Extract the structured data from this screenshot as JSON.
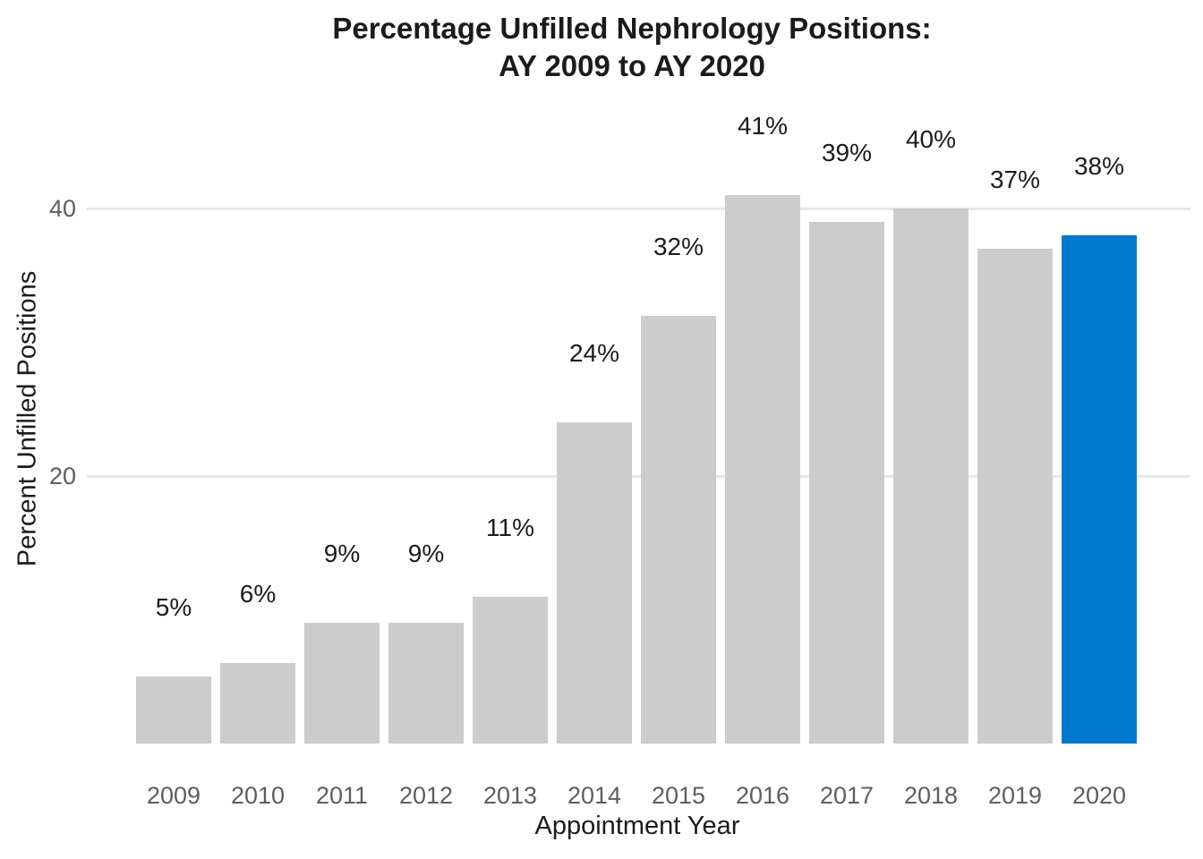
{
  "chart": {
    "title_line1": "Percentage Unfilled Nephrology Positions:",
    "title_line2": "AY 2009 to AY 2020",
    "x_axis_title": "Appointment Year",
    "y_axis_title": "Percent Unfilled Positions"
  },
  "chart_data": {
    "type": "bar",
    "title": "Percentage Unfilled Nephrology Positions: AY 2009 to AY 2020",
    "xlabel": "Appointment Year",
    "ylabel": "Percent Unfilled Positions",
    "categories": [
      "2009",
      "2010",
      "2011",
      "2012",
      "2013",
      "2014",
      "2015",
      "2016",
      "2017",
      "2018",
      "2019",
      "2020"
    ],
    "values": [
      5,
      6,
      9,
      9,
      11,
      24,
      32,
      41,
      39,
      40,
      37,
      38
    ],
    "data_labels": [
      "5%",
      "6%",
      "9%",
      "9%",
      "11%",
      "24%",
      "32%",
      "41%",
      "39%",
      "40%",
      "37%",
      "38%"
    ],
    "yticks": [
      20,
      40
    ],
    "ytick_labels": [
      "20",
      "40"
    ],
    "ylim": [
      0,
      47
    ],
    "grid": "horizontal-only",
    "legend": "none",
    "highlight_category": "2020",
    "colors": {
      "bar_default": "#CCCCCC",
      "bar_highlight": "#0078CC",
      "gridline": "#E7E7E7",
      "tick_label": "#5E5E5E",
      "axis_title": "#1B1B1B",
      "data_label": "#1B1B1B",
      "background": "#FFFFFF"
    }
  }
}
